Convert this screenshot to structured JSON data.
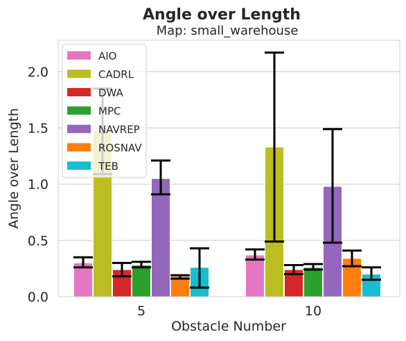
{
  "chart_data": {
    "type": "bar",
    "title": "Angle over Length",
    "subtitle": "Map: small_warehouse",
    "xlabel": "Obstacle Number",
    "ylabel": "Angle over Length",
    "categories": [
      "5",
      "10"
    ],
    "ylim": [
      0,
      2.28
    ],
    "yticks": [
      "0.0",
      "0.5",
      "1.0",
      "1.5",
      "2.0"
    ],
    "grid": true,
    "legend_position": "top-left",
    "series": [
      {
        "name": "AIO",
        "color": "#e377c2",
        "values": [
          0.3,
          0.37
        ],
        "error_low": [
          0.26,
          0.33
        ],
        "error_high": [
          0.35,
          0.42
        ]
      },
      {
        "name": "CADRL",
        "color": "#bcbd22",
        "values": [
          1.47,
          1.33
        ],
        "error_low": [
          1.09,
          0.49
        ],
        "error_high": [
          1.85,
          2.17
        ]
      },
      {
        "name": "DWA",
        "color": "#d62728",
        "values": [
          0.24,
          0.24
        ],
        "error_low": [
          0.18,
          0.2
        ],
        "error_high": [
          0.3,
          0.28
        ]
      },
      {
        "name": "MPC",
        "color": "#2ca02c",
        "values": [
          0.28,
          0.26
        ],
        "error_low": [
          0.26,
          0.24
        ],
        "error_high": [
          0.31,
          0.29
        ]
      },
      {
        "name": "NAVREP",
        "color": "#9467bd",
        "values": [
          1.05,
          0.98
        ],
        "error_low": [
          0.91,
          0.48
        ],
        "error_high": [
          1.21,
          1.49
        ]
      },
      {
        "name": "ROSNAV",
        "color": "#ff7f0e",
        "values": [
          0.18,
          0.34
        ],
        "error_low": [
          0.16,
          0.27
        ],
        "error_high": [
          0.19,
          0.41
        ]
      },
      {
        "name": "TEB",
        "color": "#17becf",
        "values": [
          0.26,
          0.2
        ],
        "error_low": [
          0.08,
          0.15
        ],
        "error_high": [
          0.43,
          0.26
        ]
      }
    ]
  }
}
